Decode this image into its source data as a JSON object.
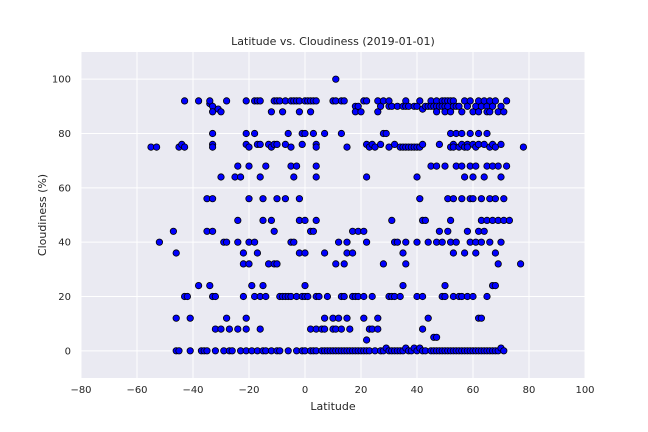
{
  "chart_data": {
    "type": "scatter",
    "title": "Latitude vs. Cloudiness (2019-01-01)",
    "xlabel": "Latitude",
    "ylabel": "Cloudiness (%)",
    "xlim": [
      -80,
      100
    ],
    "ylim": [
      -10,
      110
    ],
    "xticks": [
      -80,
      -60,
      -40,
      -20,
      0,
      20,
      40,
      60,
      80,
      100
    ],
    "yticks": [
      0,
      20,
      40,
      60,
      80,
      100
    ],
    "grid": true,
    "colors": {
      "background": "#eaeaf2",
      "marker_fill": "#0000ff",
      "marker_edge": "#000000",
      "grid": "#ffffff"
    },
    "points": [
      [
        -55,
        75
      ],
      [
        -53,
        75
      ],
      [
        -52,
        40
      ],
      [
        -47,
        44
      ],
      [
        -46,
        36
      ],
      [
        -46,
        12
      ],
      [
        -46,
        0
      ],
      [
        -45,
        0
      ],
      [
        -45,
        75
      ],
      [
        -44,
        76
      ],
      [
        -43,
        75
      ],
      [
        -43,
        92
      ],
      [
        -43,
        20
      ],
      [
        -42,
        20
      ],
      [
        -41,
        12
      ],
      [
        -41,
        0
      ],
      [
        -38,
        92
      ],
      [
        -38,
        24
      ],
      [
        -37,
        0
      ],
      [
        -36,
        0
      ],
      [
        -35,
        0
      ],
      [
        -35,
        56
      ],
      [
        -35,
        44
      ],
      [
        -34,
        91
      ],
      [
        -34,
        92
      ],
      [
        -34,
        24
      ],
      [
        -33,
        90
      ],
      [
        -33,
        88
      ],
      [
        -33,
        80
      ],
      [
        -33,
        76
      ],
      [
        -33,
        75
      ],
      [
        -33,
        56
      ],
      [
        -33,
        44
      ],
      [
        -33,
        20
      ],
      [
        -32,
        8
      ],
      [
        -32,
        20
      ],
      [
        -32,
        0
      ],
      [
        -31,
        89
      ],
      [
        -30,
        88
      ],
      [
        -30,
        64
      ],
      [
        -30,
        8
      ],
      [
        -29,
        40
      ],
      [
        -29,
        0
      ],
      [
        -28,
        92
      ],
      [
        -28,
        40
      ],
      [
        -28,
        12
      ],
      [
        -27,
        0
      ],
      [
        -27,
        8
      ],
      [
        -26,
        0
      ],
      [
        -25,
        64
      ],
      [
        -24,
        68
      ],
      [
        -24,
        48
      ],
      [
        -24,
        8
      ],
      [
        -24,
        40
      ],
      [
        -23,
        64
      ],
      [
        -23,
        0
      ],
      [
        -22,
        36
      ],
      [
        -22,
        20
      ],
      [
        -22,
        32
      ],
      [
        -21,
        92
      ],
      [
        -21,
        80
      ],
      [
        -21,
        76
      ],
      [
        -21,
        12
      ],
      [
        -21,
        8
      ],
      [
        -21,
        0
      ],
      [
        -20,
        75
      ],
      [
        -20,
        68
      ],
      [
        -20,
        56
      ],
      [
        -20,
        40
      ],
      [
        -20,
        32
      ],
      [
        -19,
        24
      ],
      [
        -19,
        0
      ],
      [
        -18,
        92
      ],
      [
        -18,
        80
      ],
      [
        -18,
        40
      ],
      [
        -18,
        20
      ],
      [
        -17,
        92
      ],
      [
        -17,
        76
      ],
      [
        -17,
        36
      ],
      [
        -17,
        0
      ],
      [
        -16,
        92
      ],
      [
        -16,
        76
      ],
      [
        -16,
        64
      ],
      [
        -16,
        20
      ],
      [
        -16,
        8
      ],
      [
        -15,
        56
      ],
      [
        -15,
        48
      ],
      [
        -15,
        24
      ],
      [
        -15,
        0
      ],
      [
        -14,
        68
      ],
      [
        -14,
        0
      ],
      [
        -14,
        20
      ],
      [
        -13,
        76
      ],
      [
        -13,
        32
      ],
      [
        -12,
        88
      ],
      [
        -12,
        75
      ],
      [
        -12,
        48
      ],
      [
        -12,
        0
      ],
      [
        -11,
        92
      ],
      [
        -11,
        76
      ],
      [
        -11,
        44
      ],
      [
        -11,
        32
      ],
      [
        -10,
        92
      ],
      [
        -10,
        76
      ],
      [
        -10,
        56
      ],
      [
        -10,
        32
      ],
      [
        -10,
        0
      ],
      [
        -9,
        92
      ],
      [
        -9,
        20
      ],
      [
        -9,
        0
      ],
      [
        -8,
        88
      ],
      [
        -8,
        20
      ],
      [
        -7,
        92
      ],
      [
        -7,
        76
      ],
      [
        -7,
        56
      ],
      [
        -7,
        20
      ],
      [
        -6,
        80
      ],
      [
        -6,
        20
      ],
      [
        -6,
        0
      ],
      [
        -5,
        92
      ],
      [
        -5,
        75
      ],
      [
        -5,
        68
      ],
      [
        -5,
        40
      ],
      [
        -5,
        20
      ],
      [
        -4,
        92
      ],
      [
        -4,
        64
      ],
      [
        -4,
        40
      ],
      [
        -3,
        92
      ],
      [
        -3,
        68
      ],
      [
        -3,
        20
      ],
      [
        -3,
        0
      ],
      [
        -2,
        92
      ],
      [
        -2,
        88
      ],
      [
        -2,
        56
      ],
      [
        -2,
        48
      ],
      [
        -2,
        36
      ],
      [
        -1,
        80
      ],
      [
        -1,
        76
      ],
      [
        -1,
        20
      ],
      [
        -1,
        0
      ],
      [
        0,
        92
      ],
      [
        0,
        80
      ],
      [
        0,
        48
      ],
      [
        0,
        36
      ],
      [
        0,
        24
      ],
      [
        0,
        20
      ],
      [
        0,
        0
      ],
      [
        1,
        92
      ],
      [
        1,
        20
      ],
      [
        2,
        88
      ],
      [
        2,
        92
      ],
      [
        2,
        44
      ],
      [
        2,
        8
      ],
      [
        2,
        0
      ],
      [
        3,
        92
      ],
      [
        3,
        80
      ],
      [
        3,
        44
      ],
      [
        3,
        0
      ],
      [
        4,
        92
      ],
      [
        4,
        76
      ],
      [
        4,
        75
      ],
      [
        4,
        68
      ],
      [
        4,
        64
      ],
      [
        4,
        48
      ],
      [
        4,
        20
      ],
      [
        4,
        8
      ],
      [
        4,
        0
      ],
      [
        5,
        20
      ],
      [
        6,
        8
      ],
      [
        6,
        0
      ],
      [
        7,
        80
      ],
      [
        7,
        36
      ],
      [
        7,
        12
      ],
      [
        7,
        8
      ],
      [
        7,
        0
      ],
      [
        8,
        20
      ],
      [
        8,
        0
      ],
      [
        9,
        0
      ],
      [
        10,
        92
      ],
      [
        10,
        12
      ],
      [
        10,
        8
      ],
      [
        10,
        0
      ],
      [
        11,
        100
      ],
      [
        11,
        92
      ],
      [
        11,
        32
      ],
      [
        11,
        8
      ],
      [
        11,
        0
      ],
      [
        12,
        40
      ],
      [
        12,
        12
      ],
      [
        12,
        0
      ],
      [
        13,
        92
      ],
      [
        13,
        80
      ],
      [
        13,
        20
      ],
      [
        13,
        8
      ],
      [
        13,
        0
      ],
      [
        14,
        92
      ],
      [
        14,
        32
      ],
      [
        14,
        20
      ],
      [
        14,
        0
      ],
      [
        15,
        75
      ],
      [
        15,
        40
      ],
      [
        15,
        36
      ],
      [
        15,
        12
      ],
      [
        15,
        0
      ],
      [
        16,
        8
      ],
      [
        16,
        0
      ],
      [
        17,
        44
      ],
      [
        17,
        36
      ],
      [
        17,
        20
      ],
      [
        17,
        0
      ],
      [
        18,
        90
      ],
      [
        18,
        88
      ],
      [
        18,
        20
      ],
      [
        18,
        0
      ],
      [
        19,
        90
      ],
      [
        19,
        44
      ],
      [
        19,
        20
      ],
      [
        19,
        0
      ],
      [
        20,
        88
      ],
      [
        20,
        0
      ],
      [
        21,
        92
      ],
      [
        21,
        44
      ],
      [
        21,
        20
      ],
      [
        21,
        12
      ],
      [
        21,
        0
      ],
      [
        22,
        92
      ],
      [
        22,
        76
      ],
      [
        22,
        64
      ],
      [
        22,
        40
      ],
      [
        22,
        4
      ],
      [
        22,
        0
      ],
      [
        23,
        75
      ],
      [
        23,
        8
      ],
      [
        23,
        0
      ],
      [
        24,
        76
      ],
      [
        24,
        20
      ],
      [
        24,
        8
      ],
      [
        25,
        75
      ],
      [
        25,
        0
      ],
      [
        26,
        92
      ],
      [
        26,
        88
      ],
      [
        26,
        12
      ],
      [
        26,
        8
      ],
      [
        27,
        90
      ],
      [
        27,
        76
      ],
      [
        27,
        0
      ],
      [
        28,
        92
      ],
      [
        28,
        80
      ],
      [
        28,
        32
      ],
      [
        28,
        0
      ],
      [
        29,
        80
      ],
      [
        29,
        1
      ],
      [
        30,
        90
      ],
      [
        30,
        92
      ],
      [
        30,
        75
      ],
      [
        30,
        20
      ],
      [
        30,
        0
      ],
      [
        31,
        90
      ],
      [
        31,
        48
      ],
      [
        31,
        20
      ],
      [
        31,
        0
      ],
      [
        32,
        76
      ],
      [
        32,
        40
      ],
      [
        32,
        20
      ],
      [
        32,
        0
      ],
      [
        33,
        90
      ],
      [
        33,
        40
      ],
      [
        33,
        0
      ],
      [
        34,
        75
      ],
      [
        34,
        20
      ],
      [
        34,
        0
      ],
      [
        35,
        90
      ],
      [
        35,
        75
      ],
      [
        35,
        36
      ],
      [
        35,
        24
      ],
      [
        35,
        0
      ],
      [
        36,
        92
      ],
      [
        36,
        90
      ],
      [
        36,
        75
      ],
      [
        36,
        40
      ],
      [
        36,
        32
      ],
      [
        36,
        1
      ],
      [
        37,
        90
      ],
      [
        37,
        75
      ],
      [
        37,
        0
      ],
      [
        38,
        75
      ],
      [
        38,
        0
      ],
      [
        39,
        90
      ],
      [
        39,
        75
      ],
      [
        39,
        1
      ],
      [
        40,
        90
      ],
      [
        40,
        75
      ],
      [
        40,
        64
      ],
      [
        40,
        40
      ],
      [
        40,
        20
      ],
      [
        40,
        0
      ],
      [
        41,
        92
      ],
      [
        41,
        75
      ],
      [
        41,
        56
      ],
      [
        41,
        1
      ],
      [
        42,
        89
      ],
      [
        42,
        76
      ],
      [
        42,
        48
      ],
      [
        42,
        20
      ],
      [
        42,
        8
      ],
      [
        42,
        0
      ],
      [
        43,
        90
      ],
      [
        43,
        48
      ],
      [
        43,
        0
      ],
      [
        44,
        90
      ],
      [
        44,
        40
      ],
      [
        44,
        12
      ],
      [
        45,
        92
      ],
      [
        45,
        90
      ],
      [
        45,
        68
      ],
      [
        45,
        0
      ],
      [
        46,
        90
      ],
      [
        46,
        5
      ],
      [
        46,
        0
      ],
      [
        47,
        92
      ],
      [
        47,
        90
      ],
      [
        47,
        88
      ],
      [
        47,
        68
      ],
      [
        47,
        40
      ],
      [
        47,
        5
      ],
      [
        47,
        0
      ],
      [
        48,
        90
      ],
      [
        48,
        76
      ],
      [
        48,
        44
      ],
      [
        48,
        0
      ],
      [
        49,
        92
      ],
      [
        49,
        90
      ],
      [
        49,
        40
      ],
      [
        49,
        20
      ],
      [
        49,
        0
      ],
      [
        50,
        92
      ],
      [
        50,
        90
      ],
      [
        50,
        88
      ],
      [
        50,
        68
      ],
      [
        50,
        24
      ],
      [
        50,
        20
      ],
      [
        50,
        0
      ],
      [
        51,
        92
      ],
      [
        51,
        90
      ],
      [
        51,
        56
      ],
      [
        51,
        44
      ],
      [
        51,
        0
      ],
      [
        52,
        92
      ],
      [
        52,
        88
      ],
      [
        52,
        80
      ],
      [
        52,
        75
      ],
      [
        52,
        48
      ],
      [
        52,
        40
      ],
      [
        52,
        0
      ],
      [
        53,
        92
      ],
      [
        53,
        90
      ],
      [
        53,
        76
      ],
      [
        53,
        75
      ],
      [
        53,
        56
      ],
      [
        53,
        36
      ],
      [
        53,
        20
      ],
      [
        53,
        0
      ],
      [
        54,
        90
      ],
      [
        54,
        80
      ],
      [
        54,
        68
      ],
      [
        54,
        40
      ],
      [
        54,
        0
      ],
      [
        55,
        90
      ],
      [
        55,
        75
      ],
      [
        55,
        20
      ],
      [
        55,
        0
      ],
      [
        56,
        88
      ],
      [
        56,
        76
      ],
      [
        56,
        80
      ],
      [
        56,
        68
      ],
      [
        56,
        56
      ],
      [
        56,
        20
      ],
      [
        56,
        0
      ],
      [
        57,
        92
      ],
      [
        57,
        75
      ],
      [
        57,
        64
      ],
      [
        57,
        36
      ],
      [
        57,
        0
      ],
      [
        58,
        90
      ],
      [
        58,
        76
      ],
      [
        58,
        75
      ],
      [
        58,
        44
      ],
      [
        58,
        20
      ],
      [
        58,
        0
      ],
      [
        59,
        92
      ],
      [
        59,
        80
      ],
      [
        59,
        68
      ],
      [
        59,
        56
      ],
      [
        59,
        40
      ],
      [
        59,
        0
      ],
      [
        60,
        88
      ],
      [
        60,
        76
      ],
      [
        60,
        64
      ],
      [
        60,
        56
      ],
      [
        60,
        20
      ],
      [
        60,
        0
      ],
      [
        61,
        90
      ],
      [
        61,
        75
      ],
      [
        61,
        68
      ],
      [
        61,
        40
      ],
      [
        61,
        36
      ],
      [
        61,
        0
      ],
      [
        62,
        92
      ],
      [
        62,
        88
      ],
      [
        62,
        80
      ],
      [
        62,
        76
      ],
      [
        62,
        44
      ],
      [
        62,
        12
      ],
      [
        62,
        0
      ],
      [
        63,
        90
      ],
      [
        63,
        56
      ],
      [
        63,
        48
      ],
      [
        63,
        40
      ],
      [
        63,
        12
      ],
      [
        63,
        0
      ],
      [
        64,
        92
      ],
      [
        64,
        76
      ],
      [
        64,
        64
      ],
      [
        64,
        44
      ],
      [
        64,
        0
      ],
      [
        65,
        90
      ],
      [
        65,
        88
      ],
      [
        65,
        80
      ],
      [
        65,
        68
      ],
      [
        65,
        48
      ],
      [
        65,
        20
      ],
      [
        65,
        0
      ],
      [
        66,
        92
      ],
      [
        66,
        88
      ],
      [
        66,
        75
      ],
      [
        66,
        56
      ],
      [
        66,
        40
      ],
      [
        66,
        0
      ],
      [
        67,
        90
      ],
      [
        67,
        76
      ],
      [
        67,
        68
      ],
      [
        67,
        48
      ],
      [
        67,
        24
      ],
      [
        67,
        0
      ],
      [
        68,
        92
      ],
      [
        68,
        75
      ],
      [
        68,
        56
      ],
      [
        68,
        36
      ],
      [
        68,
        24
      ],
      [
        68,
        0
      ],
      [
        69,
        88
      ],
      [
        69,
        68
      ],
      [
        69,
        48
      ],
      [
        69,
        32
      ],
      [
        69,
        0
      ],
      [
        70,
        90
      ],
      [
        70,
        76
      ],
      [
        70,
        64
      ],
      [
        70,
        40
      ],
      [
        70,
        1
      ],
      [
        71,
        88
      ],
      [
        71,
        56
      ],
      [
        71,
        48
      ],
      [
        71,
        0
      ],
      [
        72,
        92
      ],
      [
        72,
        68
      ],
      [
        73,
        48
      ],
      [
        77,
        32
      ],
      [
        78,
        75
      ]
    ]
  }
}
